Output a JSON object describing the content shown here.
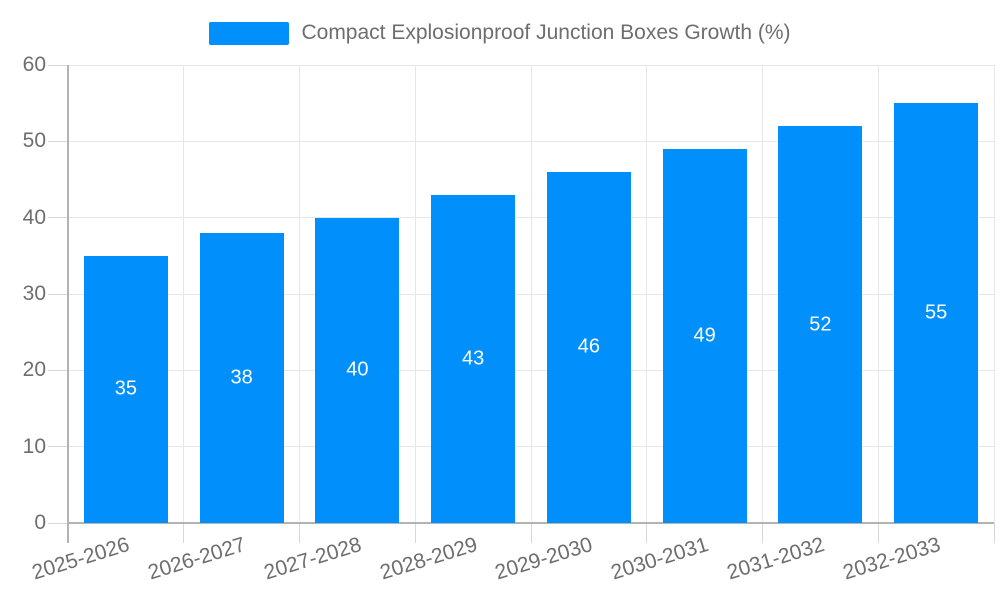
{
  "legend": {
    "label": "Compact Explosionproof Junction Boxes Growth (%)"
  },
  "chart_data": {
    "type": "bar",
    "title": "Compact Explosionproof Junction Boxes Growth (%)",
    "categories": [
      "2025-2026",
      "2026-2027",
      "2027-2028",
      "2028-2029",
      "2029-2030",
      "2030-2031",
      "2031-2032",
      "2032-2033"
    ],
    "values": [
      35,
      38,
      40,
      43,
      46,
      49,
      52,
      55
    ],
    "xlabel": "",
    "ylabel": "",
    "ylim": [
      0,
      60
    ],
    "yticks": [
      0,
      10,
      20,
      30,
      40,
      50,
      60
    ],
    "grid": true,
    "legend_position": "top",
    "value_label_position": "inside-center",
    "x_label_rotation_deg": -17
  },
  "colors": {
    "bar": "#008FFB",
    "grid_line": "#e7e7e7",
    "tick_line": "#d8d8d8",
    "axis_line": "#b3b3b3",
    "axis_label": "#6e6e6e",
    "title_text": "#6e6e6e",
    "value_label": "#ffffff",
    "background": "#ffffff"
  }
}
